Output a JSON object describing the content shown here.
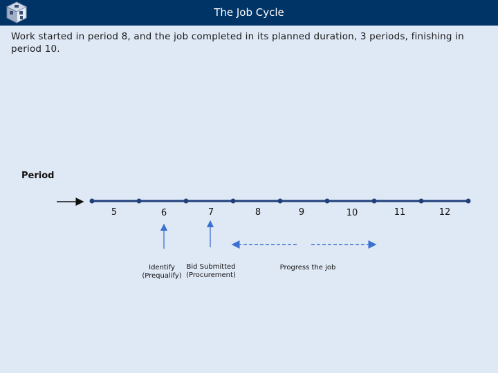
{
  "header": {
    "title": "The Job Cycle"
  },
  "slide": {
    "description": "Work started in period 8, and the job completed in its planned duration, 3 periods, finishing in period 10.",
    "period_label": "Period",
    "periods": [
      "5",
      "6",
      "7",
      "8",
      "9",
      "10",
      "11",
      "12"
    ],
    "annotations": {
      "identify": "Identify",
      "prequalify": "(Prequalify)",
      "bid_submitted": "Bid Submitted",
      "procurement": "(Procurement)",
      "progress": "Progress the job"
    }
  },
  "colors": {
    "titlebar": "#003366",
    "background": "#dfe8f5",
    "timeline": "#1f3f7a",
    "arrow": "#3b6fd0"
  },
  "icons": [
    "app-cube-icon",
    "arrow-right-icon",
    "arrow-up-icon",
    "dashed-double-arrow-icon"
  ]
}
